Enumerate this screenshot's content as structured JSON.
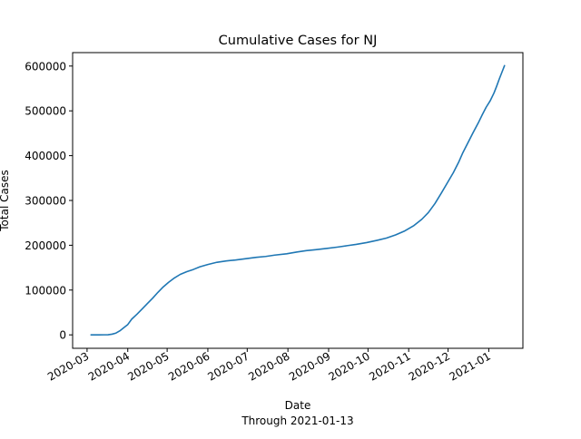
{
  "chart_data": {
    "type": "line",
    "title": "Cumulative Cases for NJ",
    "xlabel": "Date",
    "xlabel_sub": "Through 2021-01-13",
    "ylabel": "Total Cases",
    "x_tick_labels": [
      "2020-03",
      "2020-04",
      "2020-05",
      "2020-06",
      "2020-07",
      "2020-08",
      "2020-09",
      "2020-10",
      "2020-11",
      "2020-12",
      "2021-01"
    ],
    "x_tick_dates": [
      "2020-03-01",
      "2020-04-01",
      "2020-05-01",
      "2020-06-01",
      "2020-07-01",
      "2020-08-01",
      "2020-09-01",
      "2020-10-01",
      "2020-11-01",
      "2020-12-01",
      "2021-01-01"
    ],
    "y_ticks": [
      0,
      100000,
      200000,
      300000,
      400000,
      500000,
      600000
    ],
    "xlim": [
      "2020-02-19",
      "2021-01-27"
    ],
    "ylim": [
      -30000,
      630000
    ],
    "grid": false,
    "line_color": "#1f77b4",
    "series": [
      {
        "name": "",
        "points": [
          [
            "2020-03-04",
            0
          ],
          [
            "2020-03-10",
            30
          ],
          [
            "2020-03-14",
            100
          ],
          [
            "2020-03-17",
            300
          ],
          [
            "2020-03-20",
            1500
          ],
          [
            "2020-03-23",
            4000
          ],
          [
            "2020-03-26",
            9000
          ],
          [
            "2020-03-29",
            16000
          ],
          [
            "2020-04-01",
            23000
          ],
          [
            "2020-04-04",
            35000
          ],
          [
            "2020-04-08",
            46000
          ],
          [
            "2020-04-12",
            58000
          ],
          [
            "2020-04-16",
            70000
          ],
          [
            "2020-04-20",
            82000
          ],
          [
            "2020-04-24",
            95000
          ],
          [
            "2020-04-28",
            107000
          ],
          [
            "2020-05-02",
            117000
          ],
          [
            "2020-05-06",
            126000
          ],
          [
            "2020-05-11",
            135000
          ],
          [
            "2020-05-16",
            141000
          ],
          [
            "2020-05-21",
            146000
          ],
          [
            "2020-05-26",
            152000
          ],
          [
            "2020-06-01",
            157000
          ],
          [
            "2020-06-08",
            162000
          ],
          [
            "2020-06-15",
            165000
          ],
          [
            "2020-06-22",
            167000
          ],
          [
            "2020-06-30",
            170000
          ],
          [
            "2020-07-08",
            173000
          ],
          [
            "2020-07-15",
            175000
          ],
          [
            "2020-07-22",
            178000
          ],
          [
            "2020-07-31",
            181000
          ],
          [
            "2020-08-08",
            185000
          ],
          [
            "2020-08-15",
            188000
          ],
          [
            "2020-08-22",
            190000
          ],
          [
            "2020-08-31",
            193000
          ],
          [
            "2020-09-08",
            196000
          ],
          [
            "2020-09-15",
            199000
          ],
          [
            "2020-09-22",
            202000
          ],
          [
            "2020-09-30",
            206000
          ],
          [
            "2020-10-08",
            211000
          ],
          [
            "2020-10-15",
            216000
          ],
          [
            "2020-10-22",
            223000
          ],
          [
            "2020-10-29",
            232000
          ],
          [
            "2020-11-05",
            244000
          ],
          [
            "2020-11-11",
            258000
          ],
          [
            "2020-11-16",
            273000
          ],
          [
            "2020-11-21",
            293000
          ],
          [
            "2020-11-26",
            317000
          ],
          [
            "2020-12-01",
            342000
          ],
          [
            "2020-12-05",
            362000
          ],
          [
            "2020-12-09",
            385000
          ],
          [
            "2020-12-12",
            405000
          ],
          [
            "2020-12-16",
            428000
          ],
          [
            "2020-12-20",
            451000
          ],
          [
            "2020-12-24",
            473000
          ],
          [
            "2020-12-27",
            491000
          ],
          [
            "2020-12-30",
            508000
          ],
          [
            "2021-01-02",
            522000
          ],
          [
            "2021-01-05",
            540000
          ],
          [
            "2021-01-07",
            555000
          ],
          [
            "2021-01-09",
            571000
          ],
          [
            "2021-01-11",
            586000
          ],
          [
            "2021-01-13",
            601000
          ]
        ]
      }
    ]
  }
}
